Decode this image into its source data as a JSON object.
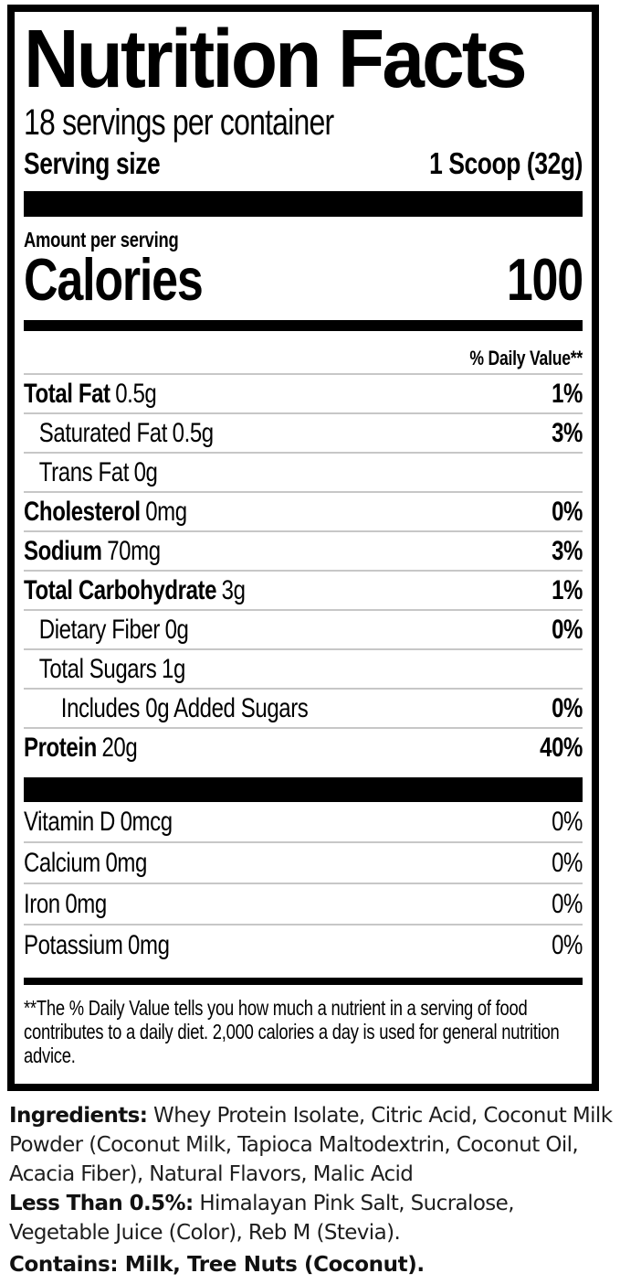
{
  "nutrition_label": {
    "title": "Nutrition Facts",
    "servings_per_container": "18 servings per container",
    "serving_size": {
      "label": "Serving size",
      "value": "1 Scoop (32g)"
    },
    "calories": {
      "header": "Amount per serving",
      "label": "Calories",
      "value": "100"
    },
    "daily_value_header": "% Daily Value**",
    "nutrients": [
      {
        "name": "Total Fat",
        "amount": "0.5g",
        "dv": "1%"
      },
      {
        "name": "Saturated Fat",
        "amount": "0.5g",
        "dv": "3%"
      },
      {
        "name": "Trans Fat",
        "amount": "0g",
        "dv": ""
      },
      {
        "name": "Cholesterol",
        "amount": "0mg",
        "dv": "0%"
      },
      {
        "name": "Sodium",
        "amount": "70mg",
        "dv": "3%"
      },
      {
        "name": "Total Carbohydrate",
        "amount": "3g",
        "dv": "1%"
      },
      {
        "name": "Dietary Fiber",
        "amount": "0g",
        "dv": "0%"
      },
      {
        "name": "Total Sugars",
        "amount": "1g",
        "dv": ""
      },
      {
        "name": "Includes 0g Added Sugars",
        "amount": "",
        "dv": "0%"
      },
      {
        "name": "Protein",
        "amount": "20g",
        "dv": "40%"
      }
    ],
    "vitamins": [
      {
        "name": "Vitamin D",
        "amount": "0mcg",
        "dv": "0%"
      },
      {
        "name": "Calcium",
        "amount": "0mg",
        "dv": "0%"
      },
      {
        "name": "Iron",
        "amount": "0mg",
        "dv": "0%"
      },
      {
        "name": "Potassium",
        "amount": "0mg",
        "dv": "0%"
      }
    ],
    "footnote": "**The % Daily Value tells you how much a nutrient in a serving of food contributes to a daily diet. 2,000 calories a day is used for general nutrition advice."
  },
  "ingredients": {
    "label": "Ingredients:",
    "list": " Whey Protein Isolate, Citric Acid, Coconut Milk Powder (Coconut Milk, Tapioca Maltodextrin, Coconut Oil, Acacia Fiber), Natural Flavors, Malic Acid",
    "less_than_label": "Less Than 0.5%:",
    "less_than_list": " Himalayan Pink Salt, Sucralose, Vegetable Juice (Color), Reb M (Stevia)."
  },
  "contains": {
    "label": "Contains:",
    "value": " Milk, Tree Nuts (Coconut)."
  },
  "colors": {
    "ink": "#000000",
    "hairline": "#c7c7c7",
    "background": "#ffffff"
  }
}
